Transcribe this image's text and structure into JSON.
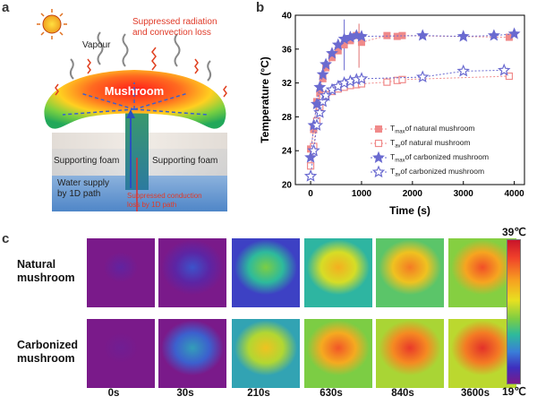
{
  "panels": {
    "a": "a",
    "b": "b",
    "c": "c"
  },
  "schematic": {
    "suppressed_radiation": "Suppressed radiation\nand convection loss",
    "vapour": "Vapour",
    "mushroom": "Mushroom",
    "supporting_foam_left": "Supporting foam",
    "supporting_foam_right": "Supporting foam",
    "water_supply": "Water supply\nby 1D path",
    "suppressed_conduction": "Suppressed conduction\nloss by 1D path"
  },
  "chart_data": {
    "type": "scatter",
    "xlabel": "Time (s)",
    "ylabel": "Temperature (°C)",
    "xlim": [
      -300,
      4200
    ],
    "ylim": [
      20,
      40
    ],
    "xticks": [
      0,
      1000,
      2000,
      3000,
      4000
    ],
    "yticks": [
      20,
      24,
      28,
      32,
      36,
      40
    ],
    "legend_position": "lower-right",
    "series": [
      {
        "name": "Tmax of natural mushroom",
        "legend_main": "T",
        "legend_sub": "max",
        "legend_rest": "of natural mushroom",
        "marker": "square-filled",
        "color": "#f08a8a",
        "x": [
          0,
          60,
          120,
          180,
          240,
          300,
          420,
          540,
          660,
          780,
          900,
          1000,
          1500,
          1700,
          1800,
          3900
        ],
        "y": [
          24.2,
          26.5,
          29.8,
          30.8,
          32.5,
          33.8,
          35.0,
          35.8,
          36.5,
          37.0,
          37.6,
          36.8,
          37.6,
          37.5,
          37.6,
          37.4
        ]
      },
      {
        "name": "Tav of natural mushroom",
        "legend_main": "T",
        "legend_sub": "av",
        "legend_rest": "of natural mushroom",
        "marker": "square-open",
        "color": "#f08a8a",
        "x": [
          0,
          60,
          120,
          180,
          240,
          300,
          420,
          540,
          660,
          780,
          900,
          1000,
          1500,
          1700,
          1800,
          3900
        ],
        "y": [
          22.2,
          24.5,
          27.5,
          29.2,
          30.3,
          30.6,
          31.0,
          31.3,
          31.5,
          31.7,
          31.8,
          31.9,
          32.1,
          32.3,
          32.4,
          32.8
        ]
      },
      {
        "name": "Tmax of carbonized mushroom",
        "legend_main": "T",
        "legend_sub": "max",
        "legend_rest": "of carbonized mushroom",
        "marker": "star-filled",
        "color": "#6a6ad0",
        "x": [
          0,
          60,
          120,
          180,
          240,
          300,
          420,
          540,
          660,
          780,
          900,
          1000,
          2200,
          3000,
          3600,
          4000
        ],
        "y": [
          23.2,
          27.0,
          29.5,
          31.5,
          33.0,
          34.2,
          35.5,
          36.5,
          37.2,
          37.4,
          37.6,
          37.5,
          37.6,
          37.5,
          37.6,
          37.8
        ]
      },
      {
        "name": "Tav of carbonized mushroom",
        "legend_main": "T",
        "legend_sub": "av",
        "legend_rest": "of carbonized mushroom",
        "marker": "star-open",
        "color": "#6a6ad0",
        "x": [
          0,
          60,
          120,
          180,
          240,
          300,
          420,
          540,
          660,
          780,
          900,
          1000,
          2200,
          3000,
          3800
        ],
        "y": [
          21.0,
          24.0,
          27.0,
          28.5,
          29.8,
          30.5,
          31.2,
          31.6,
          32.0,
          32.2,
          32.4,
          32.5,
          32.7,
          33.4,
          33.5
        ]
      }
    ]
  },
  "thermal": {
    "rows": [
      "Natural\nmushroom",
      "Carbonized\nmushroom"
    ],
    "times": [
      "0s",
      "30s",
      "210s",
      "630s",
      "840s",
      "3600s"
    ],
    "scale_max": "39℃",
    "scale_min": "19℃",
    "natural_levels": [
      0.05,
      0.18,
      0.5,
      0.72,
      0.8,
      0.86
    ],
    "carbonized_levels": [
      0.02,
      0.32,
      0.68,
      0.85,
      0.9,
      0.92
    ]
  }
}
